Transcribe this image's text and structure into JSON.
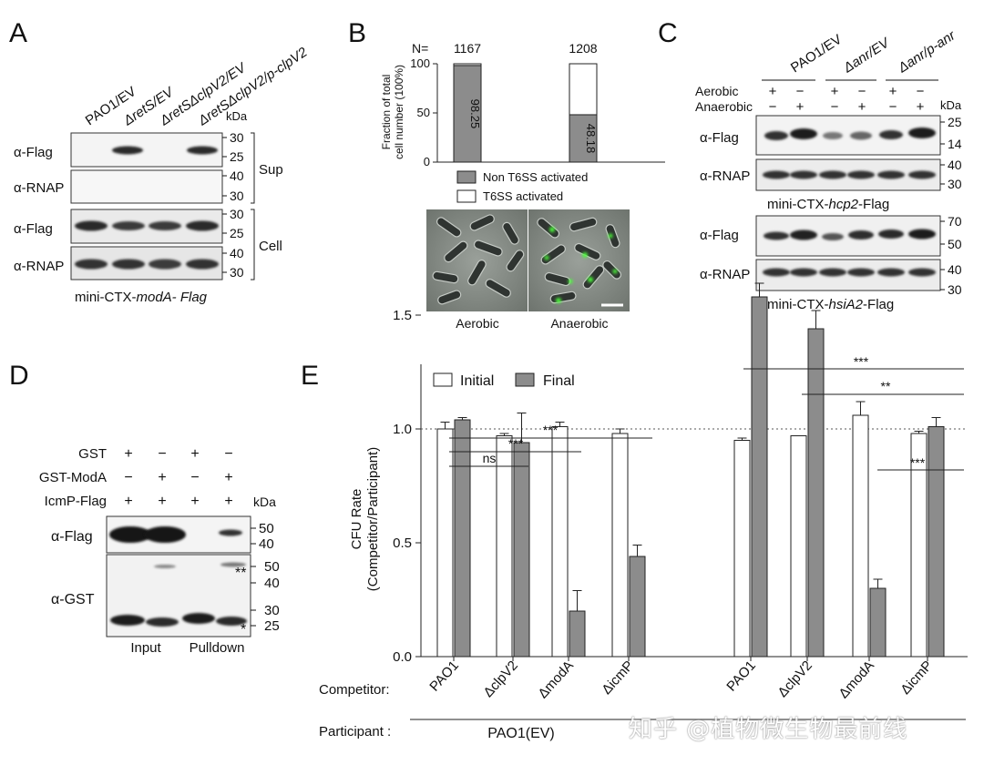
{
  "panelA": {
    "letter": "A",
    "lanes": [
      "PAO1/EV",
      "ΔretS/EV",
      "ΔretSΔclpV2/EV",
      "ΔretSΔclpV2/p-clpV2"
    ],
    "kda_label": "kDa",
    "blots": [
      {
        "label": "α-Flag",
        "marks": [
          "30",
          "25"
        ]
      },
      {
        "label": "α-RNAP",
        "marks": [
          "40",
          "30"
        ]
      },
      {
        "label": "α-Flag",
        "marks": [
          "30",
          "25"
        ]
      },
      {
        "label": "α-RNAP",
        "marks": [
          "40",
          "30"
        ]
      }
    ],
    "groups": [
      "Sup",
      "Cell"
    ],
    "caption_prefix": "mini-CTX-",
    "caption_italic": "modA- Flag"
  },
  "panelB": {
    "letter": "B",
    "n_label": "N=",
    "n_values": [
      "1167",
      "1208"
    ],
    "y_title_1": "Fraction of total",
    "y_title_2": "cell number (100%)",
    "legend": [
      "Non T6SS activated",
      "T6SS activated"
    ],
    "micro_labels": [
      "Aerobic",
      "Anaerobic"
    ],
    "chart_data": {
      "type": "bar",
      "stacked": true,
      "categories": [
        "",
        ""
      ],
      "series": [
        {
          "name": "Non T6SS activated",
          "values": [
            98.25,
            48.18
          ],
          "color": "#8c8c8c"
        },
        {
          "name": "T6SS activated",
          "values": [
            1.75,
            51.82
          ],
          "color": "#ffffff"
        }
      ],
      "data_labels": [
        "98.25",
        "48.18"
      ],
      "yticks": [
        "0",
        "50",
        "100"
      ],
      "ylim": [
        0,
        100
      ]
    }
  },
  "panelC": {
    "letter": "C",
    "lanes": [
      "PAO1/EV",
      "Δanr/EV",
      "Δanr/p-anr"
    ],
    "row_labels": [
      "Aerobic",
      "Anaerobic"
    ],
    "aerobic": [
      "+",
      "−",
      "+",
      "−",
      "+",
      "−"
    ],
    "anaerobic": [
      "−",
      "+",
      "−",
      "+",
      "−",
      "+"
    ],
    "kda_label": "kDa",
    "blots": [
      {
        "label": "α-Flag",
        "marks": [
          "25",
          "14"
        ]
      },
      {
        "label": "α-RNAP",
        "marks": [
          "40",
          "30"
        ]
      },
      {
        "label": "α-Flag",
        "marks": [
          "70",
          "50"
        ]
      },
      {
        "label": "α-RNAP",
        "marks": [
          "40",
          "30"
        ]
      }
    ],
    "caption1_prefix": "mini-CTX-",
    "caption1_italic": "hcp2",
    "caption1_suffix": "-Flag",
    "caption2_prefix": "mini-CTX-",
    "caption2_italic": "hsiA2",
    "caption2_suffix": "-Flag"
  },
  "panelD": {
    "letter": "D",
    "row_labels": [
      "GST",
      "GST-ModA",
      "IcmP-Flag"
    ],
    "gst": [
      "+",
      "−",
      "+",
      "−"
    ],
    "gst_moda": [
      "−",
      "+",
      "−",
      "+"
    ],
    "icmp": [
      "+",
      "+",
      "+",
      "+"
    ],
    "kda_label": "kDa",
    "blots": [
      {
        "label": "α-Flag",
        "marks": [
          "50",
          "40"
        ]
      },
      {
        "label": "α-GST",
        "marks": [
          "50",
          "40",
          "30",
          "25"
        ]
      }
    ],
    "star_marks": [
      "**",
      "*"
    ],
    "bottom_labels": [
      "Input",
      "Pulldown"
    ]
  },
  "panelE": {
    "letter": "E",
    "y_title_1": "CFU Rate",
    "y_title_2": "(Competitor/Participant)",
    "legend": [
      "Initial",
      "Final"
    ],
    "competitor_label": "Competitor:",
    "participant_label": "Participant :",
    "participant_group": "PAO1(EV)",
    "sig": [
      {
        "label": "***"
      },
      {
        "label": "***"
      },
      {
        "label": "ns"
      },
      {
        "label": "***"
      },
      {
        "label": "**"
      },
      {
        "label": "***"
      }
    ],
    "chart_data": {
      "type": "bar",
      "categories": [
        "PAO1",
        "ΔclpV2",
        "ΔmodA",
        "ΔicmP",
        "PAO1",
        "ΔclpV2",
        "ΔmodA",
        "ΔicmP"
      ],
      "series": [
        {
          "name": "Initial",
          "values": [
            1.0,
            0.97,
            1.01,
            0.98,
            0.95,
            0.97,
            1.06,
            0.98
          ],
          "errors": [
            0.03,
            0.01,
            0.02,
            0.02,
            0.01,
            0.0,
            0.06,
            0.01
          ],
          "color": "#ffffff"
        },
        {
          "name": "Final",
          "values": [
            1.04,
            0.94,
            0.2,
            0.44,
            1.58,
            1.44,
            0.3,
            1.01
          ],
          "errors": [
            0.01,
            0.13,
            0.09,
            0.05,
            0.06,
            0.08,
            0.04,
            0.04
          ],
          "color": "#8c8c8c"
        }
      ],
      "reference_line": 1.0,
      "yticks": [
        "0.0",
        "0.5",
        "1.0",
        "1.5"
      ],
      "ylim": [
        0,
        1.7
      ]
    }
  },
  "watermark": "知乎 @植物微生物最前线"
}
